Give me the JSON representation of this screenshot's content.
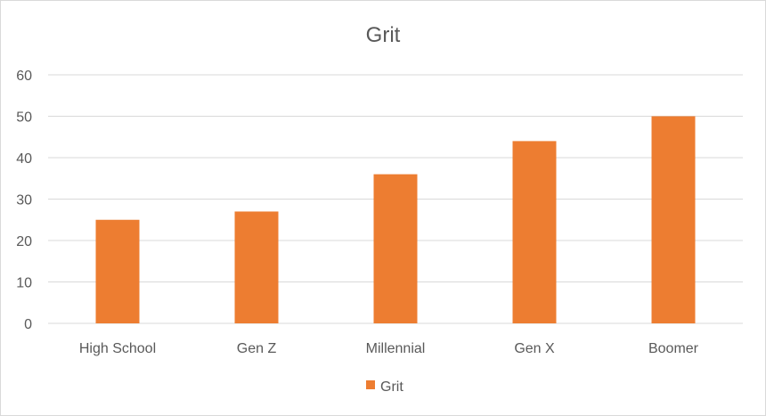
{
  "chart_data": {
    "type": "bar",
    "title": "Grit",
    "categories": [
      "High School",
      "Gen Z",
      "Millennial",
      "Gen X",
      "Boomer"
    ],
    "series": [
      {
        "name": "Grit",
        "values": [
          25,
          27,
          36,
          44,
          50
        ],
        "color": "#ED7D31"
      }
    ],
    "yticks": [
      "0",
      "10",
      "20",
      "30",
      "40",
      "50",
      "60"
    ],
    "ylim": [
      0,
      60
    ],
    "grid": true,
    "legend": "bottom"
  }
}
